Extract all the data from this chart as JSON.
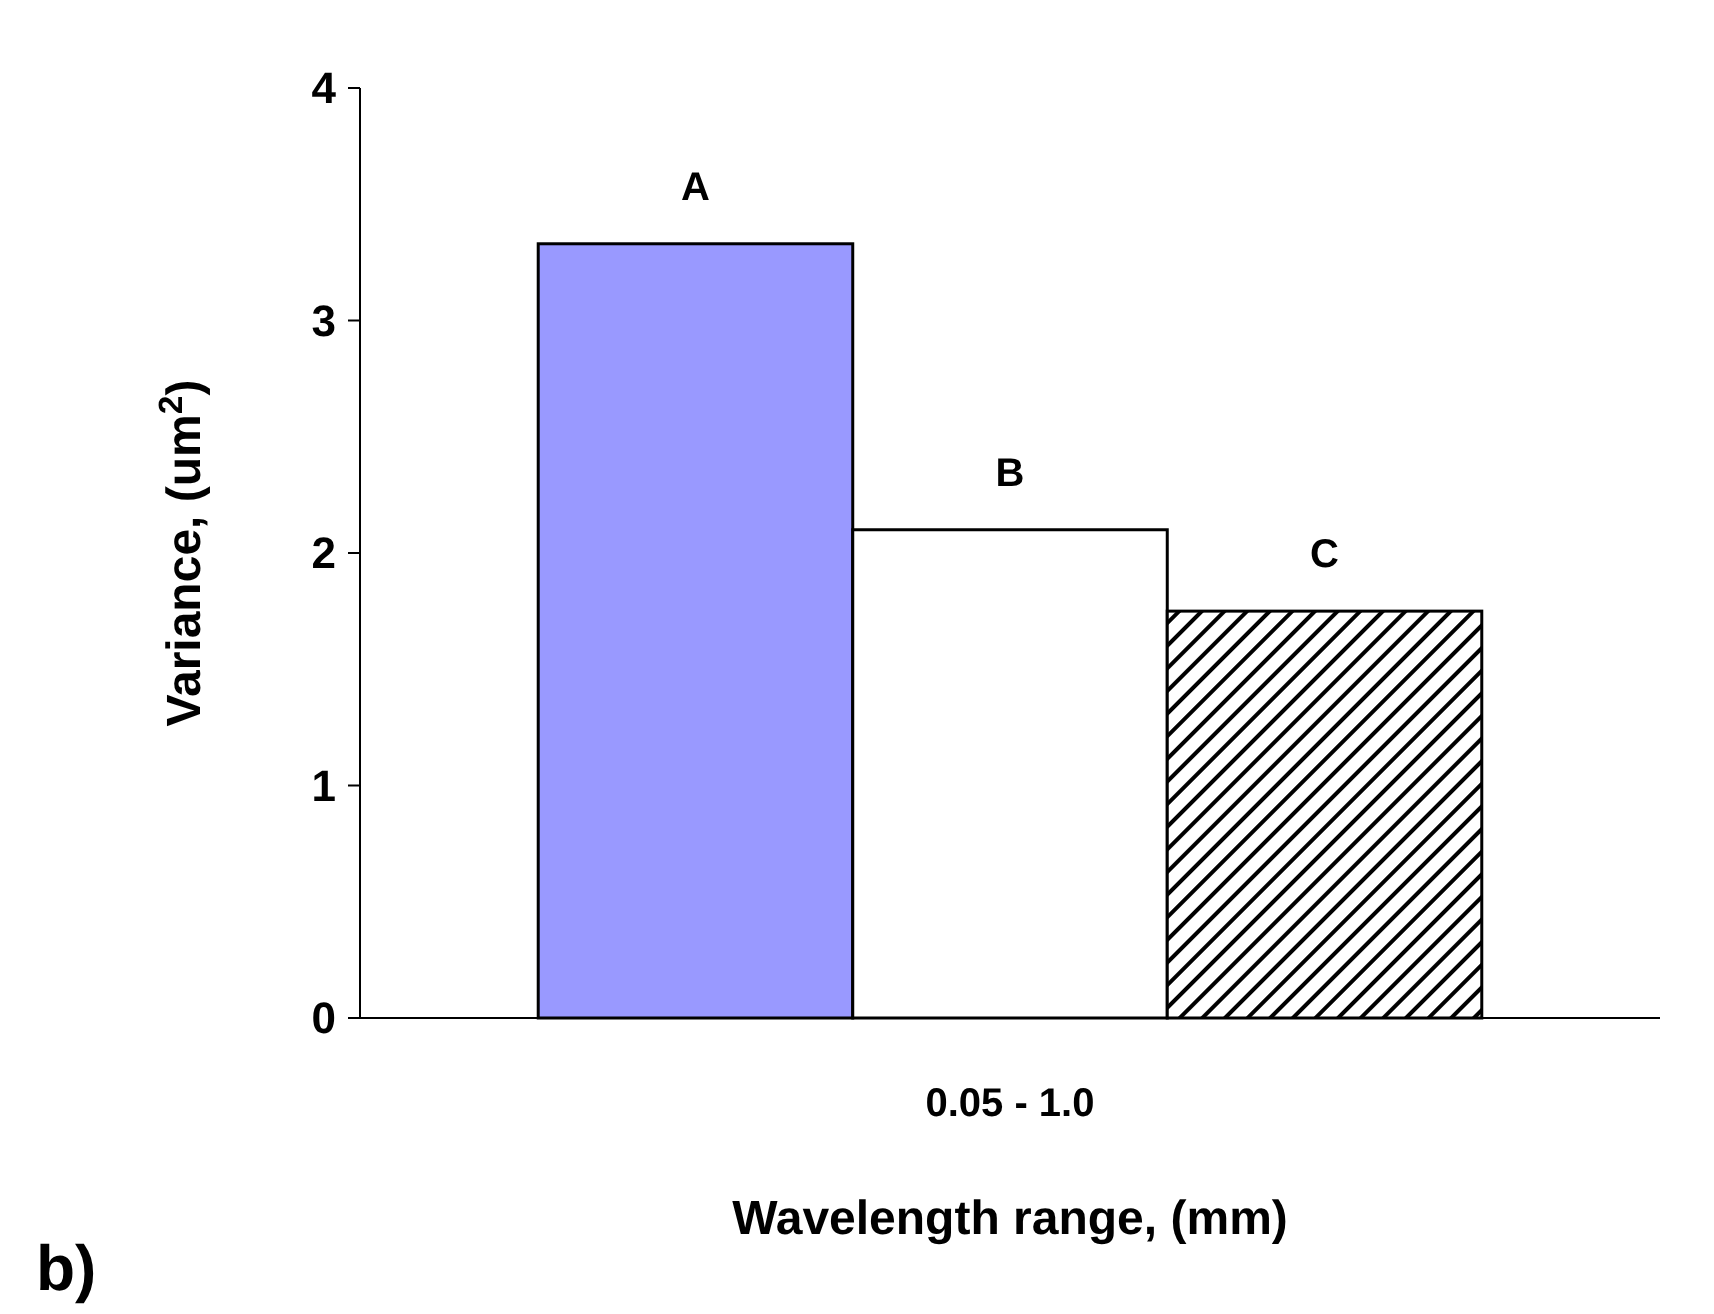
{
  "chart_data": {
    "type": "bar",
    "xlabel": "Wavelength range, (mm)",
    "ylabel": "Variance, (um$^{2}$)",
    "categories": [
      "0.05 - 1.0"
    ],
    "series": [
      {
        "name": "A",
        "color": "#9999ff",
        "values": [
          3.33
        ]
      },
      {
        "name": "B",
        "color": "#ffffff",
        "values": [
          2.1
        ]
      },
      {
        "name": "C",
        "color": "#000000",
        "values": [
          1.75
        ]
      }
    ],
    "ylim": [
      0,
      4
    ],
    "yticks": [
      0,
      1,
      2,
      3,
      4
    ],
    "grid": false,
    "legend": false,
    "annotations": [
      "b)"
    ]
  }
}
